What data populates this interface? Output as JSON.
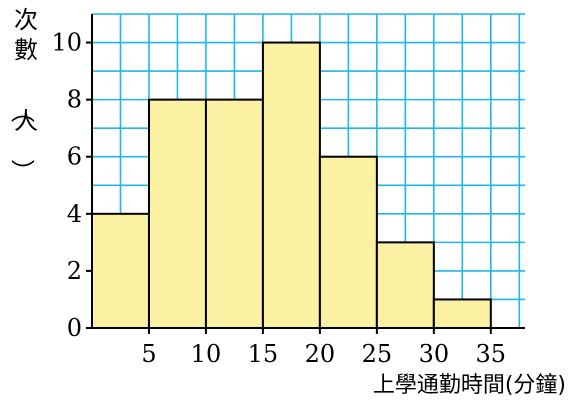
{
  "chart_data": {
    "type": "bar",
    "bin_edges": [
      0,
      5,
      10,
      15,
      20,
      25,
      30,
      35
    ],
    "values": [
      4,
      8,
      8,
      10,
      6,
      3,
      1
    ],
    "x_tick_labels": [
      "5",
      "10",
      "15",
      "20",
      "25",
      "30",
      "35"
    ],
    "y_ticks": [
      0,
      2,
      4,
      6,
      8,
      10
    ],
    "xlabel": "上學通勤時間(分鐘)",
    "ylabel": "次數（人）",
    "xlim": [
      0,
      38
    ],
    "ylim": [
      0,
      11
    ],
    "x_grid_step": 2.5,
    "y_grid_step": 1,
    "grid": true,
    "colors": {
      "bar_fill": "#fbf1a3",
      "bar_stroke": "#000000",
      "grid": "#1fb7e8",
      "axis": "#000000"
    }
  }
}
